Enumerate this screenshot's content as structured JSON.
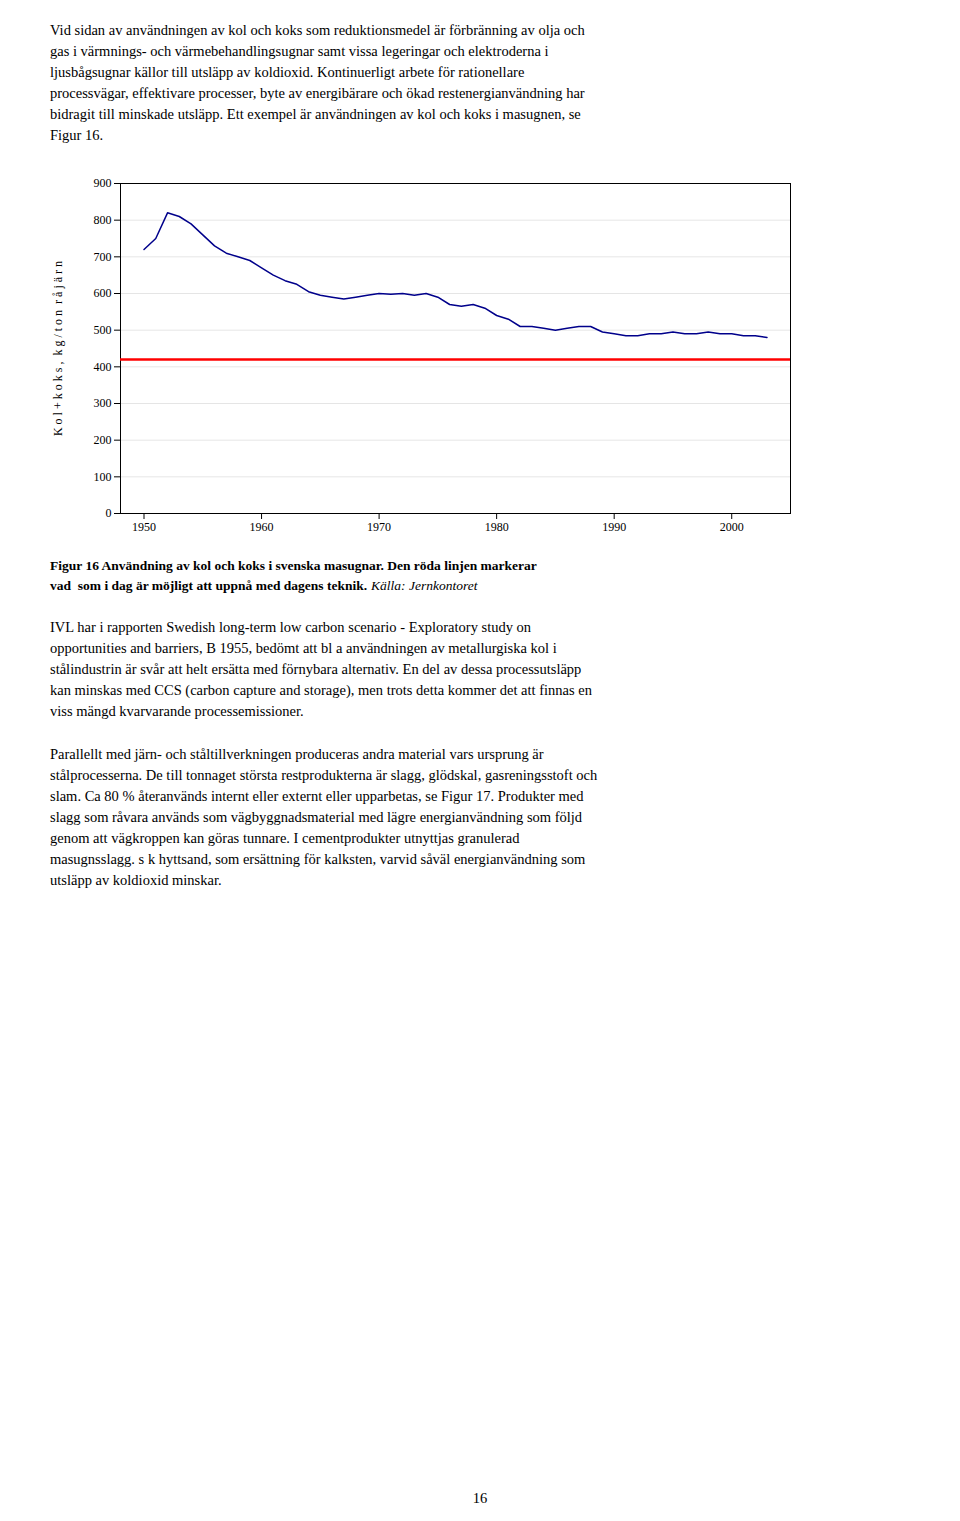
{
  "chart_data": {
    "type": "line",
    "caption": "Figur 16 Användning av kol och koks i svenska masugnar. Den röda linjen markerar\nvad  som i dag är möjligt att uppnå med dagens teknik.",
    "source": "Källa: Jernkontoret",
    "ylabel": "K o l + k o k s ,  k g / t o n  r å j ä r n",
    "x": [
      1950,
      1951,
      1952,
      1953,
      1954,
      1955,
      1956,
      1957,
      1958,
      1959,
      1960,
      1961,
      1962,
      1963,
      1964,
      1965,
      1966,
      1967,
      1968,
      1969,
      1970,
      1971,
      1972,
      1973,
      1974,
      1975,
      1976,
      1977,
      1978,
      1979,
      1980,
      1981,
      1982,
      1983,
      1984,
      1985,
      1986,
      1987,
      1988,
      1989,
      1990,
      1991,
      1992,
      1993,
      1994,
      1995,
      1996,
      1997,
      1998,
      1999,
      2000,
      2001,
      2002,
      2003
    ],
    "values": [
      720,
      750,
      820,
      810,
      790,
      760,
      730,
      710,
      700,
      690,
      670,
      650,
      635,
      625,
      605,
      595,
      590,
      585,
      590,
      595,
      600,
      598,
      600,
      595,
      600,
      590,
      570,
      565,
      570,
      560,
      540,
      530,
      510,
      510,
      505,
      500,
      505,
      510,
      510,
      495,
      490,
      485,
      485,
      490,
      490,
      495,
      490,
      490,
      495,
      490,
      490,
      485,
      485,
      480
    ],
    "color": "#00008B",
    "xlim": [
      1948,
      2005
    ],
    "xticks": [
      1950,
      1960,
      1970,
      1980,
      1990,
      2000
    ],
    "ylim": [
      0,
      900
    ],
    "yticks": [
      0,
      100,
      200,
      300,
      400,
      500,
      600,
      700,
      800,
      900
    ],
    "grid": true,
    "reference_line": {
      "y": 420,
      "color": "#FF0000"
    }
  },
  "text_before": "Vid sidan av användningen av kol och koks som reduktionsmedel är förbränning av olja och\ngas i värmnings- och värmebehandlingsugnar samt vissa legeringar och elektroderna i\nljusbågsugnar källor till utsläpp av koldioxid. Kontinuerligt arbete för rationellare\nprocessvägar, effektivare processer, byte av energibärare och ökad restenergianvändning har\nbidragit till minskade utsläpp. Ett exempel är användningen av kol och koks i masugnen, se\nFigur 16.",
  "text_after": [
    "IVL har i rapporten Swedish long-term low carbon scenario - Exploratory study on\nopportunities and barriers, B 1955, bedömt att bl a användningen av metallurgiska kol i\nstålindustrin är svår att helt ersätta med förnybara alternativ. En del av dessa processutsläpp\nkan minskas med CCS (carbon capture and storage), men trots detta kommer det att finnas en\nviss mängd kvarvarande processemissioner.",
    "Parallellt med järn- och ståltillverkningen produceras andra material vars ursprung är\nstålprocesserna. De till tonnaget största restprodukterna är slagg, glödskal, gasreningsstoft och\nslam. Ca 80 % återanvänds internt eller externt eller upparbetas, se Figur 17. Produkter med\nslagg som råvara används som vägbyggnadsmaterial med lägre energianvändning som följd\ngenom att vägkroppen kan göras tunnare. I cementprodukter utnyttjas granulerad\nmasugnsslagg. s k hyttsand, som ersättning för kalksten, varvid såväl energianvändning som\nutsläpp av koldioxid minskar."
  ],
  "page_number": "16"
}
